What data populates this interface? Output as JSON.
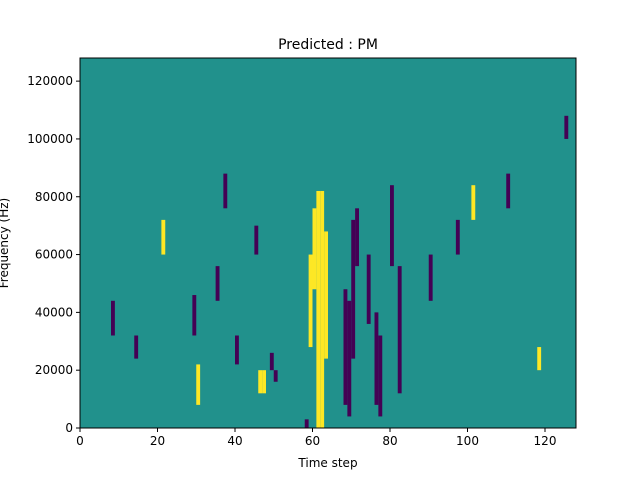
{
  "chart_data": {
    "type": "heatmap",
    "title": "Predicted : PM",
    "xlabel": "Time step",
    "ylabel": "Frequency (Hz)",
    "x_ticks": [
      0,
      20,
      40,
      60,
      80,
      100,
      120
    ],
    "x_tick_labels": [
      "0",
      "20",
      "40",
      "60",
      "80",
      "100",
      "120"
    ],
    "y_ticks": [
      0,
      20000,
      40000,
      60000,
      80000,
      100000,
      120000
    ],
    "y_tick_labels": [
      "0",
      "20000",
      "40000",
      "60000",
      "80000",
      "100000",
      "120000"
    ],
    "xlim": [
      0,
      128
    ],
    "ylim": [
      0,
      128000
    ],
    "n_time_steps": 128,
    "colormap": "viridis",
    "colors": {
      "background": "#21918c",
      "high": "#fde725",
      "low": "#440154"
    },
    "grid": false,
    "cells": [
      {
        "x": 61,
        "y0": 0,
        "y1": 82000,
        "level": "high"
      },
      {
        "x": 62,
        "y0": 0,
        "y1": 82000,
        "level": "high"
      },
      {
        "x": 60,
        "y0": 48000,
        "y1": 76000,
        "level": "high"
      },
      {
        "x": 63,
        "y0": 24000,
        "y1": 68000,
        "level": "high"
      },
      {
        "x": 59,
        "y0": 28000,
        "y1": 60000,
        "level": "high"
      },
      {
        "x": 58,
        "y0": 0,
        "y1": 3000,
        "level": "low"
      },
      {
        "x": 68,
        "y0": 8000,
        "y1": 48000,
        "level": "low"
      },
      {
        "x": 69,
        "y0": 4000,
        "y1": 44000,
        "level": "low"
      },
      {
        "x": 70,
        "y0": 24000,
        "y1": 72000,
        "level": "low"
      },
      {
        "x": 71,
        "y0": 56000,
        "y1": 76000,
        "level": "low"
      },
      {
        "x": 76,
        "y0": 8000,
        "y1": 40000,
        "level": "low"
      },
      {
        "x": 77,
        "y0": 4000,
        "y1": 32000,
        "level": "low"
      },
      {
        "x": 74,
        "y0": 36000,
        "y1": 60000,
        "level": "low"
      },
      {
        "x": 80,
        "y0": 56000,
        "y1": 84000,
        "level": "low"
      },
      {
        "x": 82,
        "y0": 12000,
        "y1": 56000,
        "level": "low"
      },
      {
        "x": 90,
        "y0": 44000,
        "y1": 60000,
        "level": "low"
      },
      {
        "x": 46,
        "y0": 12000,
        "y1": 20000,
        "level": "high"
      },
      {
        "x": 47,
        "y0": 12000,
        "y1": 20000,
        "level": "high"
      },
      {
        "x": 49,
        "y0": 20000,
        "y1": 26000,
        "level": "low"
      },
      {
        "x": 50,
        "y0": 16000,
        "y1": 20000,
        "level": "low"
      },
      {
        "x": 29,
        "y0": 32000,
        "y1": 46000,
        "level": "low"
      },
      {
        "x": 30,
        "y0": 8000,
        "y1": 22000,
        "level": "high"
      },
      {
        "x": 35,
        "y0": 44000,
        "y1": 56000,
        "level": "low"
      },
      {
        "x": 40,
        "y0": 22000,
        "y1": 32000,
        "level": "low"
      },
      {
        "x": 45,
        "y0": 60000,
        "y1": 70000,
        "level": "low"
      },
      {
        "x": 8,
        "y0": 32000,
        "y1": 44000,
        "level": "low"
      },
      {
        "x": 14,
        "y0": 24000,
        "y1": 32000,
        "level": "low"
      },
      {
        "x": 21,
        "y0": 60000,
        "y1": 72000,
        "level": "high"
      },
      {
        "x": 37,
        "y0": 76000,
        "y1": 88000,
        "level": "low"
      },
      {
        "x": 97,
        "y0": 60000,
        "y1": 72000,
        "level": "low"
      },
      {
        "x": 101,
        "y0": 72000,
        "y1": 84000,
        "level": "high"
      },
      {
        "x": 110,
        "y0": 76000,
        "y1": 88000,
        "level": "low"
      },
      {
        "x": 118,
        "y0": 20000,
        "y1": 28000,
        "level": "high"
      },
      {
        "x": 125,
        "y0": 100000,
        "y1": 108000,
        "level": "low"
      }
    ]
  }
}
